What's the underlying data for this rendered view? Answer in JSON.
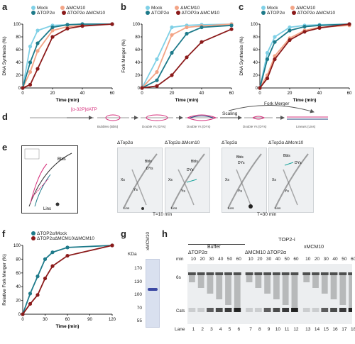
{
  "panel_labels": {
    "a": "a",
    "b": "b",
    "c": "c",
    "d": "d",
    "e": "e",
    "f": "f",
    "g": "g",
    "h": "h"
  },
  "colors": {
    "mock": "#7fd0e6",
    "dmcm10": "#f3a486",
    "dtop": "#1d7a8a",
    "dtopdmcm": "#8b1a1a"
  },
  "legend_a": {
    "mock": "Mock",
    "dmcm10": "ΔMCM10",
    "dtop": "ΔTOP2α",
    "dtopdmcm": "ΔTOP2α ΔMCM10"
  },
  "legend_b": {
    "mock": "Mock",
    "dmcm10": "ΔMCM10",
    "dtop": "ΔTOP2α",
    "dtopdmcm": "ΔTOP2α ΔMCM10"
  },
  "legend_c": {
    "mock": "Mock",
    "dmcm10": "ΔMCM10",
    "dtop": "ΔTOP2α",
    "dtopdmcm": "ΔTOP2α ΔMCM10"
  },
  "legend_f": {
    "a": "ΔTOP2α/Mock",
    "b": "ΔTOP2αΔMCM10/ΔMCM10"
  },
  "chart_data": [
    {
      "type": "line",
      "panel": "a",
      "xlabel": "Time (min)",
      "ylabel": "DNA Synthesis (%)",
      "xlim": [
        0,
        60
      ],
      "ylim": [
        0,
        100
      ],
      "xticks": [
        0,
        20,
        40,
        60
      ],
      "yticks": [
        0,
        20,
        40,
        60,
        80,
        100
      ],
      "series": [
        {
          "name": "Mock",
          "color": "#7fd0e6",
          "x": [
            0,
            5,
            10,
            20,
            30,
            40,
            60
          ],
          "y": [
            0,
            65,
            90,
            98,
            99,
            100,
            100
          ]
        },
        {
          "name": "ΔMCM10",
          "color": "#f3a486",
          "x": [
            0,
            5,
            10,
            20,
            30,
            40,
            60
          ],
          "y": [
            0,
            25,
            58,
            90,
            96,
            98,
            100
          ]
        },
        {
          "name": "ΔTOP2α",
          "color": "#1d7a8a",
          "x": [
            0,
            5,
            10,
            20,
            30,
            40,
            60
          ],
          "y": [
            0,
            40,
            70,
            95,
            99,
            100,
            100
          ]
        },
        {
          "name": "ΔTOP2α ΔMCM10",
          "color": "#8b1a1a",
          "x": [
            0,
            5,
            10,
            20,
            30,
            40,
            60
          ],
          "y": [
            0,
            5,
            30,
            80,
            93,
            97,
            100
          ]
        }
      ]
    },
    {
      "type": "line",
      "panel": "b",
      "xlabel": "Time (min)",
      "ylabel": "Fork Merger (%)",
      "xlim": [
        0,
        60
      ],
      "ylim": [
        0,
        100
      ],
      "xticks": [
        0,
        20,
        40,
        60
      ],
      "yticks": [
        0,
        20,
        40,
        60,
        80,
        100
      ],
      "series": [
        {
          "name": "Mock",
          "color": "#7fd0e6",
          "x": [
            0,
            10,
            20,
            30,
            40,
            60
          ],
          "y": [
            0,
            45,
            95,
            98,
            99,
            100
          ]
        },
        {
          "name": "ΔMCM10",
          "color": "#f3a486",
          "x": [
            0,
            10,
            20,
            30,
            40,
            60
          ],
          "y": [
            0,
            25,
            83,
            95,
            97,
            100
          ]
        },
        {
          "name": "ΔTOP2α",
          "color": "#1d7a8a",
          "x": [
            0,
            10,
            20,
            30,
            40,
            60
          ],
          "y": [
            0,
            12,
            55,
            85,
            95,
            98
          ]
        },
        {
          "name": "ΔTOP2α ΔMCM10",
          "color": "#8b1a1a",
          "x": [
            0,
            10,
            20,
            30,
            40,
            60
          ],
          "y": [
            0,
            3,
            20,
            48,
            72,
            92
          ]
        }
      ]
    },
    {
      "type": "line",
      "panel": "c",
      "xlabel": "Time (min)",
      "ylabel": "DNA Synthesis (%)",
      "xlim": [
        0,
        60
      ],
      "ylim": [
        0,
        100
      ],
      "xticks": [
        0,
        20,
        40,
        60
      ],
      "yticks": [
        0,
        20,
        40,
        60,
        80,
        100
      ],
      "series": [
        {
          "name": "Mock",
          "color": "#7fd0e6",
          "x": [
            0,
            5,
            10,
            20,
            30,
            40,
            60
          ],
          "y": [
            0,
            55,
            80,
            95,
            98,
            99,
            100
          ]
        },
        {
          "name": "ΔMCM10",
          "color": "#f3a486",
          "x": [
            0,
            5,
            10,
            20,
            30,
            40,
            60
          ],
          "y": [
            0,
            20,
            50,
            78,
            90,
            95,
            98
          ]
        },
        {
          "name": "ΔTOP2α",
          "color": "#1d7a8a",
          "x": [
            0,
            5,
            10,
            20,
            30,
            40,
            60
          ],
          "y": [
            0,
            45,
            72,
            90,
            96,
            98,
            100
          ]
        },
        {
          "name": "ΔTOP2α ΔMCM10",
          "color": "#8b1a1a",
          "x": [
            0,
            5,
            10,
            20,
            30,
            40,
            60
          ],
          "y": [
            0,
            15,
            45,
            75,
            88,
            94,
            100
          ]
        }
      ]
    },
    {
      "type": "line",
      "panel": "f",
      "xlabel": "Time (min)",
      "ylabel": "Relative Fork Merger (%)",
      "xlim": [
        0,
        120
      ],
      "ylim": [
        0,
        100
      ],
      "xticks": [
        0,
        30,
        60,
        90,
        120
      ],
      "yticks": [
        0,
        20,
        40,
        60,
        80,
        100
      ],
      "series": [
        {
          "name": "ΔTOP2α/Mock",
          "color": "#1d7a8a",
          "x": [
            0,
            10,
            20,
            30,
            40,
            60,
            120
          ],
          "y": [
            0,
            30,
            55,
            80,
            90,
            97,
            100
          ]
        },
        {
          "name": "ΔTOP2αΔMCM10/ΔMCM10",
          "color": "#8b1a1a",
          "x": [
            0,
            10,
            20,
            30,
            40,
            60,
            120
          ],
          "y": [
            0,
            15,
            28,
            52,
            70,
            85,
            100
          ]
        }
      ]
    }
  ],
  "panel_d": {
    "label_p": "[α-32P]dATP",
    "stage1": "Bubbles (Bbls)",
    "stage2": "Double Ys (DYs)",
    "stage3": "Double Ys (DYs)",
    "scaling": "Scaling",
    "stage4": "Double Ys (DYs)",
    "fork_merger": "Fork Merger",
    "stage5": "Linears (Lins)"
  },
  "panel_e": {
    "top1": "ΔTop2α",
    "top2": "ΔTop2α ΔMcm10",
    "top3": "ΔTop2α",
    "top4": "ΔTop2α ΔMcm10",
    "time1": "T=10 min",
    "time2": "T=30 min",
    "bbls": "Bbls",
    "dys": "DYs",
    "xs": "Xs",
    "ys": "Ys",
    "lins": "Lins",
    "key_bbls": "Bbls",
    "key_lins": "Lins"
  },
  "panel_g": {
    "kda": "KDa",
    "lane": "xMCM10",
    "markers": [
      "170",
      "130",
      "100",
      "70",
      "55"
    ]
  },
  "panel_h": {
    "top": "TOP2-i",
    "buffer": "Buffer",
    "xmcm10": "xMCM10",
    "dtop": "ΔTOP2α",
    "dmcm_dtop": "ΔMCM10 ΔTOP2α",
    "min": "min",
    "times": [
      "10",
      "20",
      "30",
      "40",
      "50",
      "60",
      "10",
      "20",
      "30",
      "40",
      "50",
      "60",
      "10",
      "20",
      "30",
      "40",
      "50",
      "60"
    ],
    "lane": "Lane",
    "lanes": [
      "1",
      "2",
      "3",
      "4",
      "5",
      "6",
      "7",
      "8",
      "9",
      "10",
      "11",
      "12",
      "13",
      "14",
      "15",
      "16",
      "17",
      "18"
    ],
    "cats": "Cats",
    "ss": "6s"
  }
}
